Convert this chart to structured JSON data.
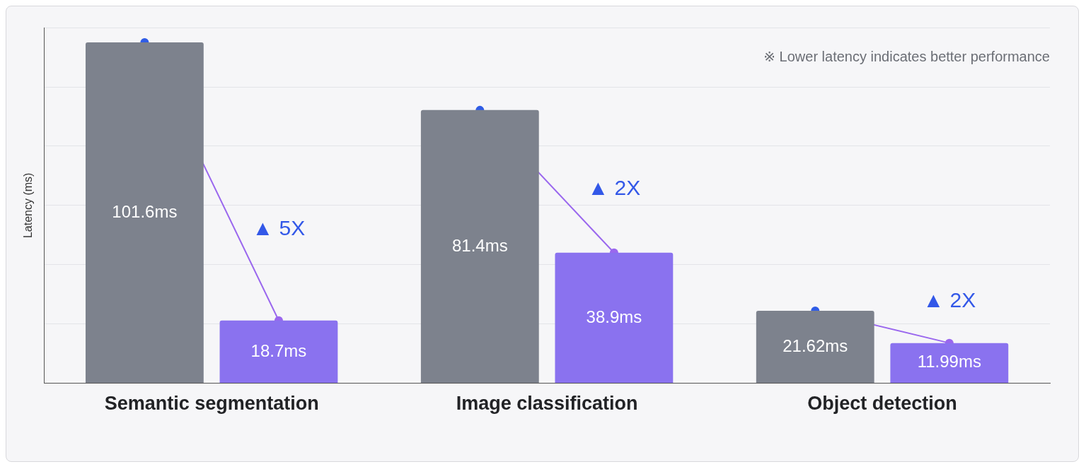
{
  "chart_data": {
    "type": "bar",
    "ylabel": "Latency (ms)",
    "categories": [
      "Semantic segmentation",
      "Image classification",
      "Object detection"
    ],
    "series": [
      {
        "color": "#7d828d",
        "values": [
          101.6,
          81.4,
          21.62
        ],
        "value_labels": [
          "101.6ms",
          "81.4ms",
          "21.62ms"
        ]
      },
      {
        "color": "#8a72ef",
        "values": [
          18.7,
          38.9,
          11.99
        ],
        "value_labels": [
          "18.7ms",
          "38.9ms",
          "11.99ms"
        ]
      }
    ],
    "ylim": [
      0,
      106
    ],
    "yticks": [
      {
        "value": 0,
        "label": null
      },
      {
        "value": 17.7,
        "label": null
      },
      {
        "value": 35.3,
        "label": null
      },
      {
        "value": 53,
        "label": null
      },
      {
        "value": 70.7,
        "label": null
      },
      {
        "value": 88.3,
        "label": null
      },
      {
        "value": 106,
        "label": null
      }
    ],
    "grid": "y",
    "tick_labels": "x",
    "annotations": [
      "※ Lower latency indicates better performance",
      "▲ 5X",
      "▲ 2X",
      "▲ 2X"
    ]
  }
}
